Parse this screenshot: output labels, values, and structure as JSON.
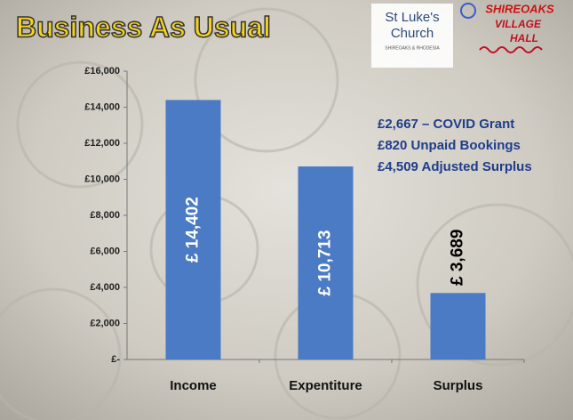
{
  "chart_data": {
    "type": "bar",
    "title": "Business As Usual",
    "categories": [
      "Income",
      "Expentiture",
      "Surplus"
    ],
    "values": [
      14402,
      10713,
      3689
    ],
    "value_labels": [
      "£ 14,402",
      "£ 10,713",
      "£ 3,689"
    ],
    "color": "#4a7bc4",
    "ylim": [
      0,
      16000
    ],
    "yticks": [
      {
        "value": 0,
        "label": "£-"
      },
      {
        "value": 2000,
        "label": "£2,000"
      },
      {
        "value": 4000,
        "label": "£4,000"
      },
      {
        "value": 6000,
        "label": "£6,000"
      },
      {
        "value": 8000,
        "label": "£8,000"
      },
      {
        "value": 10000,
        "label": "£10,000"
      },
      {
        "value": 12000,
        "label": "£12,000"
      },
      {
        "value": 14000,
        "label": "£14,000"
      },
      {
        "value": 16000,
        "label": "£16,000"
      }
    ],
    "grid": false,
    "annotations": [
      "£2,667 – COVID Grant",
      "£820 Unpaid Bookings",
      "£4,509 Adjusted Surplus"
    ]
  },
  "logos": {
    "church": [
      "St Luke's",
      "Church",
      "SHIREOAKS & RHODESIA"
    ],
    "hall": [
      "SHIREOAKS",
      "VILLAGE",
      "HALL"
    ]
  }
}
